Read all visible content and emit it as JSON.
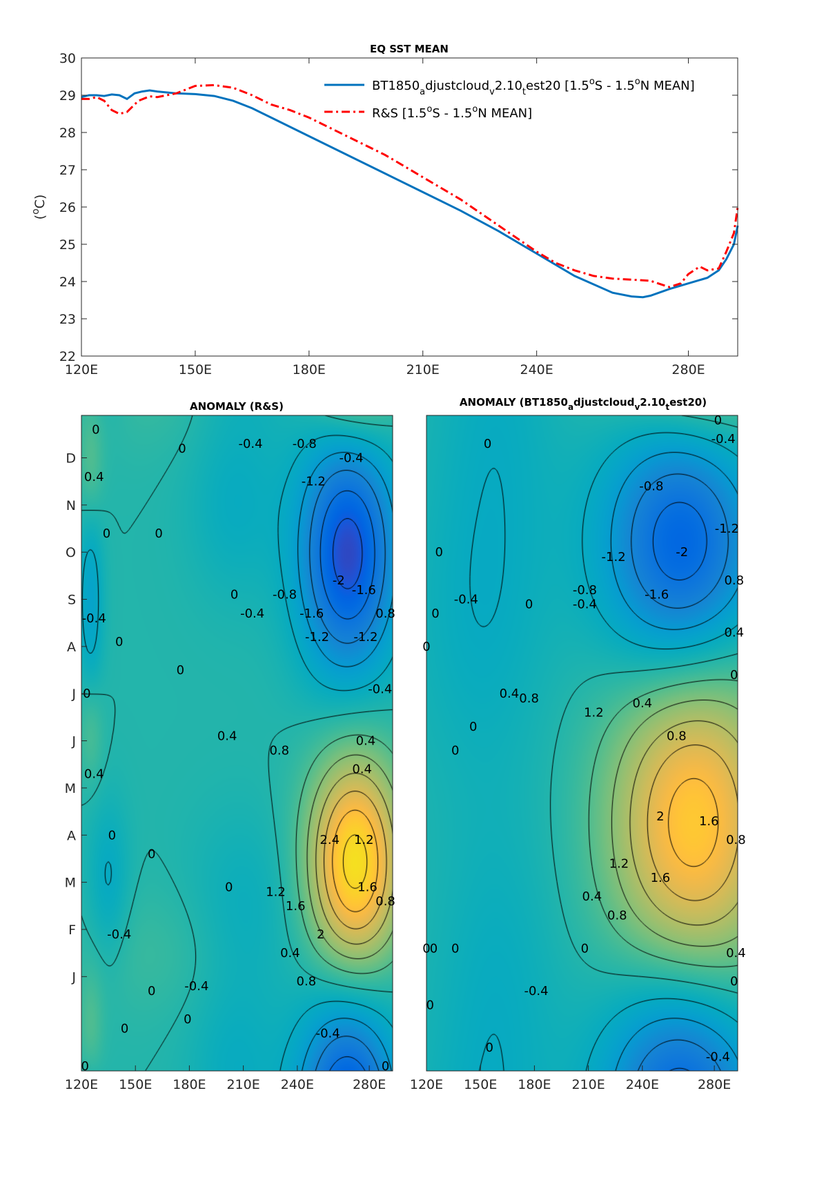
{
  "chart_data": [
    {
      "type": "line",
      "title": "EQ SST MEAN",
      "ylabel": "(°C)",
      "xlabel": "",
      "xlim": [
        120,
        293
      ],
      "ylim": [
        22,
        30
      ],
      "xticks": [
        120,
        150,
        180,
        210,
        240,
        280
      ],
      "xtick_labels": [
        "120E",
        "150E",
        "180E",
        "210E",
        "240E",
        "280E"
      ],
      "yticks": [
        22,
        23,
        24,
        25,
        26,
        27,
        28,
        29,
        30
      ],
      "ytick_labels": [
        "22",
        "23",
        "24",
        "25",
        "26",
        "27",
        "28",
        "29",
        "30"
      ],
      "grid": false,
      "legend_position": "top-right",
      "series": [
        {
          "name": "BT1850_adjustcloud_v2.10_test20 [1.5°S - 1.5°N MEAN]",
          "color": "#0072BD",
          "style": "solid",
          "x": [
            120,
            122,
            124,
            126,
            128,
            130,
            132,
            134,
            136,
            138,
            140,
            145,
            150,
            155,
            160,
            165,
            170,
            180,
            190,
            200,
            210,
            220,
            230,
            240,
            250,
            260,
            265,
            268,
            270,
            275,
            280,
            285,
            288,
            290,
            292,
            293
          ],
          "y": [
            28.95,
            29.0,
            29.0,
            28.98,
            29.02,
            29.0,
            28.9,
            29.05,
            29.1,
            29.13,
            29.1,
            29.05,
            29.03,
            28.98,
            28.85,
            28.65,
            28.4,
            27.9,
            27.4,
            26.9,
            26.4,
            25.9,
            25.35,
            24.75,
            24.15,
            23.7,
            23.6,
            23.58,
            23.62,
            23.8,
            23.95,
            24.1,
            24.3,
            24.6,
            25.0,
            25.5
          ]
        },
        {
          "name": "R&S [1.5°S - 1.5°N MEAN]",
          "color": "#FF0000",
          "style": "dash-dot",
          "x": [
            120,
            122,
            124,
            126,
            128,
            130,
            132,
            135,
            138,
            140,
            145,
            150,
            155,
            160,
            165,
            170,
            175,
            180,
            185,
            190,
            195,
            200,
            205,
            210,
            215,
            220,
            225,
            230,
            235,
            240,
            245,
            250,
            255,
            260,
            265,
            270,
            272,
            275,
            278,
            280,
            283,
            285,
            288,
            290,
            292,
            293
          ],
          "y": [
            28.9,
            28.9,
            28.95,
            28.85,
            28.6,
            28.5,
            28.55,
            28.85,
            28.97,
            28.95,
            29.05,
            29.25,
            29.27,
            29.2,
            29.0,
            28.75,
            28.6,
            28.4,
            28.15,
            27.9,
            27.65,
            27.4,
            27.1,
            26.8,
            26.5,
            26.2,
            25.85,
            25.5,
            25.15,
            24.8,
            24.5,
            24.3,
            24.15,
            24.08,
            24.05,
            24.02,
            23.95,
            23.85,
            23.95,
            24.2,
            24.4,
            24.3,
            24.35,
            24.8,
            25.3,
            26.0
          ]
        }
      ]
    },
    {
      "type": "heatmap",
      "title": "ANOMALY (R&S)",
      "xlim": [
        120,
        293
      ],
      "xticks": [
        120,
        150,
        180,
        210,
        240,
        280
      ],
      "xtick_labels": [
        "120E",
        "150E",
        "180E",
        "210E",
        "240E",
        "280E"
      ],
      "yticks": [
        "J",
        "F",
        "M",
        "A",
        "M",
        "J",
        "J",
        "A",
        "S",
        "O",
        "N",
        "D"
      ],
      "centers": [
        {
          "x": 272,
          "m": 2.4,
          "a": 2.6,
          "sx": 18,
          "sy": 1.6
        },
        {
          "x": 268,
          "m": 9.0,
          "a": -2.2,
          "sx": 19,
          "sy": 1.8
        },
        {
          "x": 125,
          "m": 8.0,
          "a": -0.6,
          "sx": 5,
          "sy": 1.5
        },
        {
          "x": 125,
          "m": 10.8,
          "a": 0.45,
          "sx": 5,
          "sy": 0.9
        },
        {
          "x": 125,
          "m": 5.2,
          "a": 0.4,
          "sx": 5,
          "sy": 0.8
        },
        {
          "x": 135,
          "m": 2.0,
          "a": -0.45,
          "sx": 8,
          "sy": 1.2
        },
        {
          "x": 210,
          "m": 1.5,
          "a": -0.3,
          "sx": 22,
          "sy": 1.4
        },
        {
          "x": 205,
          "m": 10.0,
          "a": -0.35,
          "sx": 18,
          "sy": 1.4
        },
        {
          "x": 160,
          "m": 0.5,
          "a": 0.2,
          "sx": 30,
          "sy": 1.0
        }
      ],
      "contour_levels": [
        -2,
        -1.6,
        -1.2,
        -0.8,
        -0.4,
        0,
        0.4,
        0.8,
        1.2,
        1.6,
        2,
        2.4
      ],
      "contour_labels": [
        {
          "text": "0.4",
          "x": 127,
          "m": 10.6
        },
        {
          "text": "0",
          "x": 128,
          "m": 11.6
        },
        {
          "text": "0",
          "x": 176,
          "m": 11.2
        },
        {
          "text": "-0.4",
          "x": 214,
          "m": 11.3
        },
        {
          "text": "-0.8",
          "x": 244,
          "m": 11.3
        },
        {
          "text": "-0.4",
          "x": 270,
          "m": 11.0
        },
        {
          "text": "-1.2",
          "x": 249,
          "m": 10.5
        },
        {
          "text": "0",
          "x": 134,
          "m": 9.4
        },
        {
          "text": "0",
          "x": 163,
          "m": 9.4
        },
        {
          "text": "-0.4",
          "x": 127,
          "m": 7.6
        },
        {
          "text": "0",
          "x": 141,
          "m": 7.1
        },
        {
          "text": "0",
          "x": 175,
          "m": 6.5
        },
        {
          "text": "0",
          "x": 205,
          "m": 8.1
        },
        {
          "text": "-0.8",
          "x": 233,
          "m": 8.1
        },
        {
          "text": "-0.4",
          "x": 215,
          "m": 7.7
        },
        {
          "text": "-1.6",
          "x": 248,
          "m": 7.7
        },
        {
          "text": "-1.2",
          "x": 251,
          "m": 7.2
        },
        {
          "text": "-2",
          "x": 263,
          "m": 8.4
        },
        {
          "text": "-1.6",
          "x": 277,
          "m": 8.2
        },
        {
          "text": "-1.2",
          "x": 278,
          "m": 7.2
        },
        {
          "text": "0.8",
          "x": 289,
          "m": 7.7
        },
        {
          "text": "0",
          "x": 123,
          "m": 6.0
        },
        {
          "text": "-0.4",
          "x": 286,
          "m": 6.1
        },
        {
          "text": "0.4",
          "x": 201,
          "m": 5.1
        },
        {
          "text": "0.8",
          "x": 230,
          "m": 4.8
        },
        {
          "text": "0.4",
          "x": 278,
          "m": 5.0
        },
        {
          "text": "0.4",
          "x": 276,
          "m": 4.4
        },
        {
          "text": "0.4",
          "x": 127,
          "m": 4.3
        },
        {
          "text": "0",
          "x": 137,
          "m": 3.0
        },
        {
          "text": "0",
          "x": 159,
          "m": 2.6
        },
        {
          "text": "0",
          "x": 202,
          "m": 1.9
        },
        {
          "text": "2.4",
          "x": 258,
          "m": 2.9
        },
        {
          "text": "1.2",
          "x": 277,
          "m": 2.9
        },
        {
          "text": "1.2",
          "x": 228,
          "m": 1.8
        },
        {
          "text": "1.6",
          "x": 239,
          "m": 1.5
        },
        {
          "text": "2",
          "x": 253,
          "m": 0.9
        },
        {
          "text": "1.6",
          "x": 279,
          "m": 1.9
        },
        {
          "text": "0.8",
          "x": 289,
          "m": 1.6
        },
        {
          "text": "0.4",
          "x": 236,
          "m": 0.5
        },
        {
          "text": "0.8",
          "x": 245,
          "m": -0.1
        },
        {
          "text": "-0.4",
          "x": 141,
          "m": 0.9
        },
        {
          "text": "-0.4",
          "x": 184,
          "m": -0.2
        },
        {
          "text": "0",
          "x": 159,
          "m": -0.3
        },
        {
          "text": "0",
          "x": 144,
          "m": -1.1
        },
        {
          "text": "0",
          "x": 179,
          "m": -0.9
        },
        {
          "text": "-0.4",
          "x": 257,
          "m": -1.2
        },
        {
          "text": "0",
          "x": 122,
          "m": -1.9
        },
        {
          "text": "0",
          "x": 289,
          "m": -1.9
        }
      ]
    },
    {
      "type": "heatmap",
      "title": "ANOMALY (BT1850_adjustcloud_v2.10_test20)",
      "xlim": [
        120,
        293
      ],
      "xticks": [
        120,
        150,
        180,
        210,
        240,
        280
      ],
      "xtick_labels": [
        "120E",
        "150E",
        "180E",
        "210E",
        "240E",
        "280E"
      ],
      "yticks": [
        "J",
        "F",
        "M",
        "A",
        "M",
        "J",
        "J",
        "A",
        "S",
        "O",
        "N",
        "D"
      ],
      "centers": [
        {
          "x": 268,
          "m": 3.3,
          "a": 2.3,
          "sx": 32,
          "sy": 2.7
        },
        {
          "x": 262,
          "m": 9.2,
          "a": -2.2,
          "sx": 30,
          "sy": 2.2
        },
        {
          "x": 150,
          "m": 7.5,
          "a": -0.35,
          "sx": 28,
          "sy": 2.5
        },
        {
          "x": 160,
          "m": 0.2,
          "a": -0.3,
          "sx": 25,
          "sy": 2.5
        }
      ],
      "contour_levels": [
        -2,
        -1.6,
        -1.2,
        -0.8,
        -0.4,
        0,
        0.4,
        0.8,
        1.2,
        1.6,
        2
      ],
      "contour_labels": [
        {
          "text": "0",
          "x": 282,
          "m": 11.8
        },
        {
          "text": "-0.4",
          "x": 285,
          "m": 11.4
        },
        {
          "text": "0",
          "x": 154,
          "m": 11.3
        },
        {
          "text": "-0.8",
          "x": 245,
          "m": 10.4
        },
        {
          "text": "-1.2",
          "x": 287,
          "m": 9.5
        },
        {
          "text": "0",
          "x": 127,
          "m": 9.0
        },
        {
          "text": "-2",
          "x": 262,
          "m": 9.0
        },
        {
          "text": "-1.2",
          "x": 224,
          "m": 8.9
        },
        {
          "text": "0.8",
          "x": 291,
          "m": 8.4
        },
        {
          "text": "-0.8",
          "x": 208,
          "m": 8.2
        },
        {
          "text": "-1.6",
          "x": 248,
          "m": 8.1
        },
        {
          "text": "-0.4",
          "x": 142,
          "m": 8.0
        },
        {
          "text": "-0.4",
          "x": 208,
          "m": 7.9
        },
        {
          "text": "0",
          "x": 177,
          "m": 7.9
        },
        {
          "text": "0",
          "x": 125,
          "m": 7.7
        },
        {
          "text": "0.4",
          "x": 291,
          "m": 7.3
        },
        {
          "text": "0",
          "x": 120,
          "m": 7.0
        },
        {
          "text": "0",
          "x": 291,
          "m": 6.4
        },
        {
          "text": "0.4",
          "x": 166,
          "m": 6.0
        },
        {
          "text": "0.8",
          "x": 177,
          "m": 5.9
        },
        {
          "text": "0.4",
          "x": 240,
          "m": 5.8
        },
        {
          "text": "1.2",
          "x": 213,
          "m": 5.6
        },
        {
          "text": "0.8",
          "x": 259,
          "m": 5.1
        },
        {
          "text": "0",
          "x": 146,
          "m": 5.3
        },
        {
          "text": "0",
          "x": 136,
          "m": 4.8
        },
        {
          "text": "2",
          "x": 250,
          "m": 3.4
        },
        {
          "text": "1.6",
          "x": 277,
          "m": 3.3
        },
        {
          "text": "0.8",
          "x": 292,
          "m": 2.9
        },
        {
          "text": "1.2",
          "x": 227,
          "m": 2.4
        },
        {
          "text": "1.6",
          "x": 250,
          "m": 2.1
        },
        {
          "text": "0.4",
          "x": 212,
          "m": 1.7
        },
        {
          "text": "0.8",
          "x": 226,
          "m": 1.3
        },
        {
          "text": "0",
          "x": 120,
          "m": 0.6
        },
        {
          "text": "0",
          "x": 124,
          "m": 0.6
        },
        {
          "text": "0",
          "x": 136,
          "m": 0.6
        },
        {
          "text": "0",
          "x": 208,
          "m": 0.6
        },
        {
          "text": "0.4",
          "x": 292,
          "m": 0.5
        },
        {
          "text": "-0.4",
          "x": 181,
          "m": -0.3
        },
        {
          "text": "0",
          "x": 122,
          "m": -0.6
        },
        {
          "text": "0",
          "x": 291,
          "m": -0.1
        },
        {
          "text": "0",
          "x": 155,
          "m": -1.5
        },
        {
          "text": "-0.4",
          "x": 282,
          "m": -1.7
        }
      ]
    }
  ]
}
